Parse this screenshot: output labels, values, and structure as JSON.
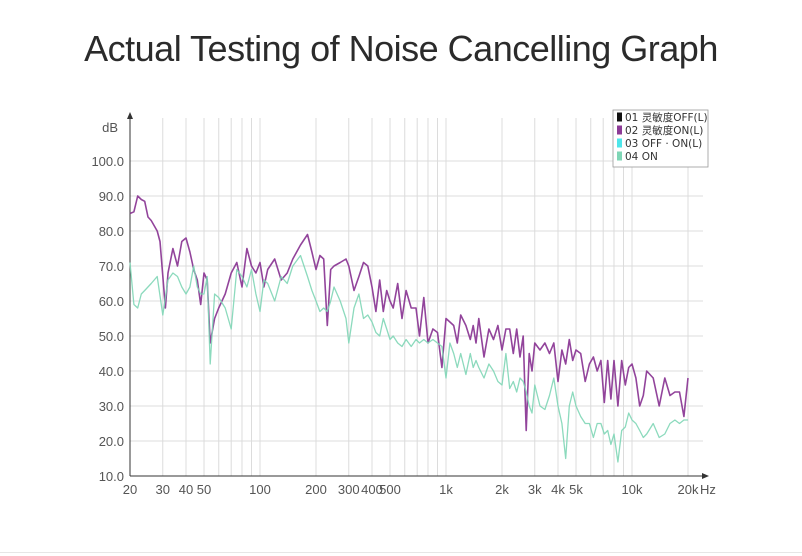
{
  "title": "Actual Testing of Noise Cancelling Graph",
  "chart_data": {
    "type": "line",
    "title": "Actual Testing of Noise Cancelling Graph",
    "ylabel": "dB",
    "xlabel": "Hz",
    "x_scale": "log",
    "xlim": [
      20,
      20000
    ],
    "ylim": [
      10,
      110
    ],
    "grid": true,
    "legend_position": "top-right",
    "x_ticks": [
      {
        "value": 20,
        "label": "20"
      },
      {
        "value": 30,
        "label": "30"
      },
      {
        "value": 40,
        "label": "40"
      },
      {
        "value": 50,
        "label": "50"
      },
      {
        "value": 100,
        "label": "100"
      },
      {
        "value": 200,
        "label": "200"
      },
      {
        "value": 300,
        "label": "300"
      },
      {
        "value": 400,
        "label": "400"
      },
      {
        "value": 500,
        "label": "500"
      },
      {
        "value": 1000,
        "label": "1k"
      },
      {
        "value": 2000,
        "label": "2k"
      },
      {
        "value": 3000,
        "label": "3k"
      },
      {
        "value": 4000,
        "label": "4k"
      },
      {
        "value": 5000,
        "label": "5k"
      },
      {
        "value": 10000,
        "label": "10k"
      },
      {
        "value": 20000,
        "label": "20k"
      }
    ],
    "x_grid": [
      20,
      30,
      40,
      50,
      60,
      70,
      80,
      90,
      100,
      200,
      300,
      400,
      500,
      600,
      700,
      800,
      900,
      1000,
      2000,
      3000,
      4000,
      5000,
      6000,
      7000,
      8000,
      9000,
      10000,
      20000
    ],
    "y_ticks": [
      {
        "value": 10,
        "label": "10.0"
      },
      {
        "value": 20,
        "label": "20.0"
      },
      {
        "value": 30,
        "label": "30.0"
      },
      {
        "value": 40,
        "label": "40.0"
      },
      {
        "value": 50,
        "label": "50.0"
      },
      {
        "value": 60,
        "label": "60.0"
      },
      {
        "value": 70,
        "label": "70.0"
      },
      {
        "value": 80,
        "label": "80.0"
      },
      {
        "value": 90,
        "label": "90.0"
      },
      {
        "value": 100,
        "label": "100.0"
      }
    ],
    "series": [
      {
        "name": "01 灵敏度OFF(L)",
        "color": "#111111",
        "visible": false,
        "points": []
      },
      {
        "name": "02 灵敏度ON(L)",
        "color": "#8c3a96",
        "visible": true,
        "points": [
          [
            20,
            85
          ],
          [
            21,
            85.5
          ],
          [
            22,
            90
          ],
          [
            23,
            89
          ],
          [
            24,
            88.5
          ],
          [
            25,
            84
          ],
          [
            26,
            83
          ],
          [
            28,
            80
          ],
          [
            29,
            77
          ],
          [
            31,
            58
          ],
          [
            32,
            68
          ],
          [
            34,
            75
          ],
          [
            36,
            70
          ],
          [
            38,
            77
          ],
          [
            40,
            78
          ],
          [
            42,
            74
          ],
          [
            44,
            69
          ],
          [
            46,
            66
          ],
          [
            48,
            59
          ],
          [
            50,
            68
          ],
          [
            52,
            66
          ],
          [
            54,
            48
          ],
          [
            57,
            55
          ],
          [
            60,
            58
          ],
          [
            65,
            62
          ],
          [
            70,
            68
          ],
          [
            75,
            71
          ],
          [
            80,
            64
          ],
          [
            85,
            75
          ],
          [
            90,
            70
          ],
          [
            95,
            68
          ],
          [
            100,
            71
          ],
          [
            105,
            64
          ],
          [
            110,
            69
          ],
          [
            120,
            72
          ],
          [
            130,
            66
          ],
          [
            140,
            68
          ],
          [
            150,
            72
          ],
          [
            165,
            76
          ],
          [
            180,
            79
          ],
          [
            190,
            74
          ],
          [
            200,
            69
          ],
          [
            210,
            73
          ],
          [
            220,
            72
          ],
          [
            230,
            53
          ],
          [
            240,
            69
          ],
          [
            250,
            70
          ],
          [
            270,
            71
          ],
          [
            290,
            72
          ],
          [
            300,
            70
          ],
          [
            320,
            63
          ],
          [
            340,
            67
          ],
          [
            360,
            71
          ],
          [
            380,
            70
          ],
          [
            400,
            64
          ],
          [
            420,
            57
          ],
          [
            440,
            66
          ],
          [
            460,
            57
          ],
          [
            480,
            63
          ],
          [
            500,
            60
          ],
          [
            520,
            58
          ],
          [
            550,
            65
          ],
          [
            580,
            55
          ],
          [
            610,
            63
          ],
          [
            650,
            58
          ],
          [
            690,
            58
          ],
          [
            720,
            50
          ],
          [
            760,
            61
          ],
          [
            800,
            48
          ],
          [
            850,
            52
          ],
          [
            900,
            51
          ],
          [
            950,
            41
          ],
          [
            1000,
            55
          ],
          [
            1050,
            54
          ],
          [
            1100,
            53
          ],
          [
            1150,
            48
          ],
          [
            1200,
            56
          ],
          [
            1280,
            53
          ],
          [
            1350,
            49
          ],
          [
            1400,
            53
          ],
          [
            1450,
            48
          ],
          [
            1500,
            55
          ],
          [
            1600,
            44
          ],
          [
            1700,
            52
          ],
          [
            1800,
            49
          ],
          [
            1900,
            53
          ],
          [
            2000,
            46
          ],
          [
            2100,
            52
          ],
          [
            2200,
            52
          ],
          [
            2300,
            45
          ],
          [
            2400,
            52
          ],
          [
            2500,
            44
          ],
          [
            2600,
            50
          ],
          [
            2700,
            23
          ],
          [
            2800,
            45
          ],
          [
            2900,
            40
          ],
          [
            3000,
            48
          ],
          [
            3200,
            46
          ],
          [
            3400,
            48
          ],
          [
            3600,
            45
          ],
          [
            3800,
            48
          ],
          [
            4000,
            37
          ],
          [
            4200,
            46
          ],
          [
            4400,
            42
          ],
          [
            4600,
            49
          ],
          [
            4800,
            43
          ],
          [
            5000,
            46
          ],
          [
            5300,
            45
          ],
          [
            5600,
            37
          ],
          [
            5900,
            42
          ],
          [
            6200,
            44
          ],
          [
            6500,
            40
          ],
          [
            6800,
            43
          ],
          [
            7100,
            31
          ],
          [
            7400,
            43
          ],
          [
            7700,
            32
          ],
          [
            8000,
            43
          ],
          [
            8400,
            30
          ],
          [
            8800,
            43
          ],
          [
            9200,
            36
          ],
          [
            9600,
            41
          ],
          [
            10000,
            42
          ],
          [
            10500,
            38
          ],
          [
            11000,
            30
          ],
          [
            11500,
            33
          ],
          [
            12000,
            40
          ],
          [
            13000,
            38
          ],
          [
            14000,
            30
          ],
          [
            15000,
            38
          ],
          [
            16000,
            33
          ],
          [
            17000,
            34
          ],
          [
            18000,
            34
          ],
          [
            19000,
            27
          ],
          [
            20000,
            38
          ]
        ]
      },
      {
        "name": "03 OFF · ON(L)",
        "color": "#4ee6ea",
        "visible": false,
        "points": []
      },
      {
        "name": "04 ON",
        "color": "#7fd6b6",
        "visible": true,
        "points": [
          [
            20,
            71
          ],
          [
            21,
            59
          ],
          [
            22,
            58
          ],
          [
            23,
            62
          ],
          [
            24,
            63
          ],
          [
            26,
            65
          ],
          [
            28,
            67
          ],
          [
            30,
            56
          ],
          [
            32,
            66
          ],
          [
            34,
            68
          ],
          [
            36,
            67
          ],
          [
            38,
            64
          ],
          [
            40,
            62
          ],
          [
            42,
            64
          ],
          [
            44,
            70
          ],
          [
            46,
            64
          ],
          [
            48,
            62
          ],
          [
            50,
            62
          ],
          [
            52,
            67
          ],
          [
            54,
            42
          ],
          [
            57,
            62
          ],
          [
            60,
            61
          ],
          [
            65,
            58
          ],
          [
            70,
            52
          ],
          [
            75,
            69
          ],
          [
            80,
            67
          ],
          [
            85,
            64
          ],
          [
            90,
            69
          ],
          [
            95,
            62
          ],
          [
            100,
            57
          ],
          [
            105,
            66
          ],
          [
            110,
            65
          ],
          [
            120,
            60
          ],
          [
            130,
            67
          ],
          [
            140,
            65
          ],
          [
            150,
            70
          ],
          [
            165,
            73
          ],
          [
            180,
            67
          ],
          [
            190,
            63
          ],
          [
            200,
            60
          ],
          [
            210,
            57
          ],
          [
            220,
            58
          ],
          [
            230,
            57
          ],
          [
            240,
            60
          ],
          [
            250,
            64
          ],
          [
            270,
            60
          ],
          [
            290,
            55
          ],
          [
            300,
            48
          ],
          [
            320,
            58
          ],
          [
            340,
            62
          ],
          [
            360,
            55
          ],
          [
            380,
            56
          ],
          [
            400,
            54
          ],
          [
            420,
            51
          ],
          [
            440,
            50
          ],
          [
            460,
            55
          ],
          [
            480,
            52
          ],
          [
            500,
            49
          ],
          [
            520,
            50
          ],
          [
            550,
            48
          ],
          [
            580,
            47
          ],
          [
            610,
            49
          ],
          [
            650,
            47
          ],
          [
            690,
            49
          ],
          [
            720,
            48
          ],
          [
            760,
            49
          ],
          [
            800,
            48
          ],
          [
            850,
            49
          ],
          [
            900,
            48
          ],
          [
            950,
            47
          ],
          [
            1000,
            38
          ],
          [
            1050,
            48
          ],
          [
            1100,
            45
          ],
          [
            1150,
            41
          ],
          [
            1200,
            45
          ],
          [
            1280,
            39
          ],
          [
            1350,
            45
          ],
          [
            1400,
            41
          ],
          [
            1450,
            43
          ],
          [
            1500,
            41
          ],
          [
            1600,
            38
          ],
          [
            1700,
            42
          ],
          [
            1800,
            40
          ],
          [
            1900,
            37
          ],
          [
            2000,
            36
          ],
          [
            2100,
            45
          ],
          [
            2200,
            35
          ],
          [
            2300,
            37
          ],
          [
            2400,
            34
          ],
          [
            2500,
            38
          ],
          [
            2600,
            37
          ],
          [
            2700,
            34
          ],
          [
            2800,
            30
          ],
          [
            2900,
            28
          ],
          [
            3000,
            36
          ],
          [
            3200,
            30
          ],
          [
            3400,
            29
          ],
          [
            3600,
            33
          ],
          [
            3800,
            38
          ],
          [
            4000,
            30
          ],
          [
            4200,
            25
          ],
          [
            4400,
            15
          ],
          [
            4600,
            30
          ],
          [
            4800,
            34
          ],
          [
            5000,
            30
          ],
          [
            5300,
            27
          ],
          [
            5600,
            25
          ],
          [
            5900,
            25
          ],
          [
            6200,
            21
          ],
          [
            6500,
            25
          ],
          [
            6800,
            25
          ],
          [
            7100,
            22
          ],
          [
            7400,
            23
          ],
          [
            7700,
            19
          ],
          [
            8000,
            22
          ],
          [
            8400,
            14
          ],
          [
            8800,
            23
          ],
          [
            9200,
            24
          ],
          [
            9600,
            28
          ],
          [
            10000,
            26
          ],
          [
            10500,
            25
          ],
          [
            11000,
            23
          ],
          [
            11500,
            21
          ],
          [
            12000,
            22
          ],
          [
            13000,
            25
          ],
          [
            14000,
            21
          ],
          [
            15000,
            22
          ],
          [
            16000,
            25
          ],
          [
            17000,
            26
          ],
          [
            18000,
            25
          ],
          [
            19000,
            26
          ],
          [
            20000,
            26
          ]
        ]
      }
    ]
  }
}
